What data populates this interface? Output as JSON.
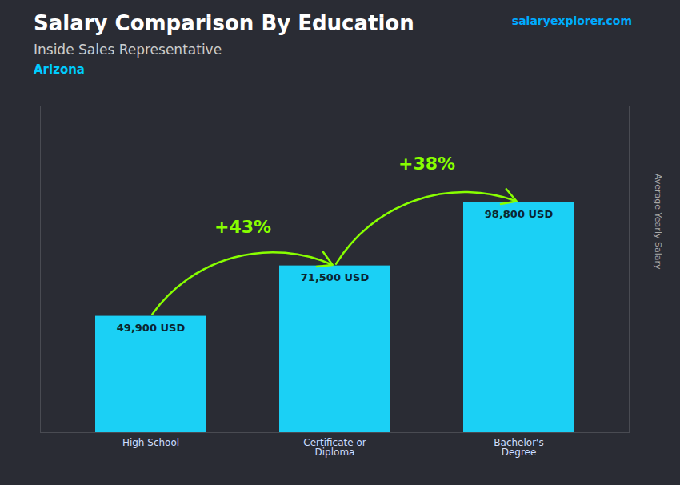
{
  "chart_data": {
    "type": "bar",
    "title": "Salary Comparison By Education",
    "subtitle": "Inside Sales Representative",
    "annotations": [
      "Arizona",
      "salaryexplorer.com",
      "+43%",
      "+38%"
    ],
    "ylabel": "Average Yearly Salary",
    "categories": [
      "High School",
      "Certificate or\nDiploma",
      "Bachelor's\nDegree"
    ],
    "values": [
      49900,
      71500,
      98800
    ],
    "value_labels": [
      "49,900 USD",
      "71,500 USD",
      "98,800 USD"
    ],
    "data_labels": true,
    "color": "#1bd0f5",
    "ylim": [
      0,
      140000
    ],
    "tick_labels": "x",
    "grid": false
  }
}
